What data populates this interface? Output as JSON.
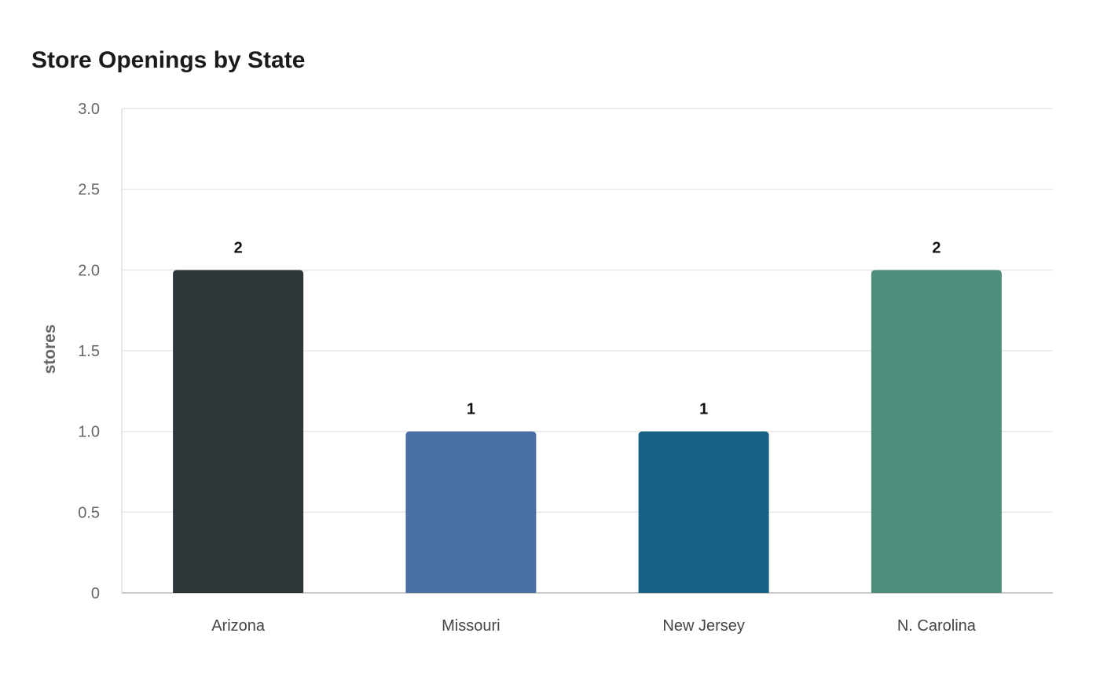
{
  "chart_data": {
    "type": "bar",
    "title": "Store Openings by State",
    "xlabel": "",
    "ylabel": "stores",
    "categories": [
      "Arizona",
      "Missouri",
      "New Jersey",
      "N. Carolina"
    ],
    "values": [
      2,
      1,
      1,
      2
    ],
    "value_labels": [
      "2",
      "1",
      "1",
      "2"
    ],
    "colors": [
      "#2e3538",
      "#4a6fa5",
      "#176187",
      "#4f8e7c"
    ],
    "ylim": [
      0,
      3.0
    ],
    "yticks": [
      0,
      0.5,
      1.0,
      1.5,
      2.0,
      2.5,
      3.0
    ],
    "ytick_labels": [
      "0",
      "0.5",
      "1.0",
      "1.5",
      "2.0",
      "2.5",
      "3.0"
    ],
    "grid": true,
    "legend": "none"
  }
}
